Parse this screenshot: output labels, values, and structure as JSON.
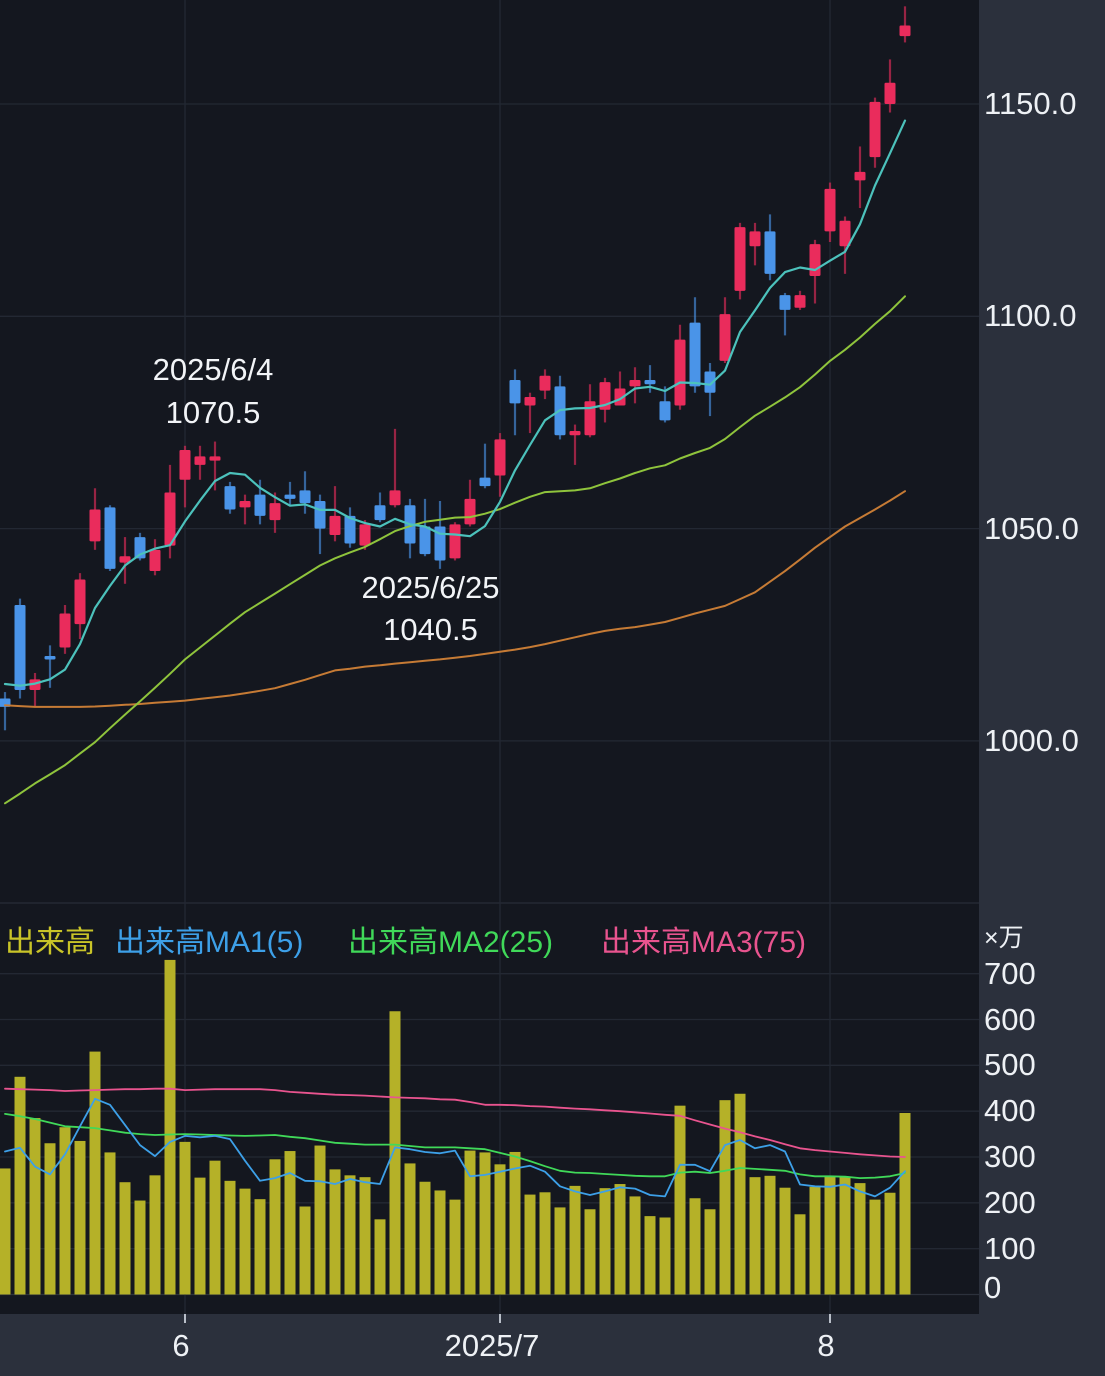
{
  "colors": {
    "background": "#14171f",
    "panel": "#2b303c",
    "grid": "#232833",
    "zero_line": "#2c313c",
    "divider": "#20242e",
    "up": "#ea2c5c",
    "down": "#4a94e8",
    "volume_bar": "#b5b128",
    "price_ma5": "#4cc2bc",
    "price_ma25": "#8fc43c",
    "price_ma75": "#c67b35",
    "volume_ma5": "#3da0e8",
    "volume_ma25": "#40d959",
    "volume_ma75": "#e9548f",
    "axis_text": "#eef1f5",
    "legend_volume_text": "#c9c428",
    "tick_mark": "#b9bfc9"
  },
  "chart_data": {
    "type": "candlestick_with_volume",
    "description": "Daily stock candlestick chart (Japanese style: red = up, blue = down) with 5/25/75-day moving averages and a volume pane with 5/25/75-day volume moving averages.",
    "price_axis": {
      "labels": [
        "1150.0",
        "1100.0",
        "1050.0",
        "1000.0"
      ],
      "values": [
        1150,
        1100,
        1050,
        1000
      ],
      "visible_range": [
        962,
        1174.5
      ]
    },
    "volume_axis": {
      "unit": "×万",
      "labels": [
        "700",
        "600",
        "500",
        "400",
        "300",
        "200",
        "100",
        "0"
      ],
      "values": [
        700,
        600,
        500,
        400,
        300,
        200,
        100,
        0
      ],
      "visible_range": [
        0,
        765
      ]
    },
    "x_axis": {
      "month_ticks": [
        {
          "index": 12,
          "label": "6"
        },
        {
          "index": 33,
          "label": "2025/7"
        },
        {
          "index": 55,
          "label": "8"
        }
      ]
    },
    "annotations": [
      {
        "name": "peak",
        "lines": [
          "2025/6/4",
          "1070.5"
        ],
        "anchor_index": 14,
        "placement": "above"
      },
      {
        "name": "trough",
        "lines": [
          "2025/6/25",
          "1040.5"
        ],
        "anchor_index": 29,
        "placement": "below"
      }
    ],
    "volume_legend": [
      {
        "label": "出来高",
        "color": "#c9c428"
      },
      {
        "label": "出来高MA1(5)",
        "color": "#3da0e8"
      },
      {
        "label": "出来高MA2(25)",
        "color": "#40d959"
      },
      {
        "label": "出来高MA3(75)",
        "color": "#e9548f"
      }
    ],
    "dates": [
      "2025/5/15",
      "2025/5/16",
      "2025/5/19",
      "2025/5/20",
      "2025/5/21",
      "2025/5/22",
      "2025/5/23",
      "2025/5/26",
      "2025/5/27",
      "2025/5/28",
      "2025/5/29",
      "2025/5/30",
      "2025/6/2",
      "2025/6/3",
      "2025/6/4",
      "2025/6/5",
      "2025/6/6",
      "2025/6/9",
      "2025/6/10",
      "2025/6/11",
      "2025/6/12",
      "2025/6/13",
      "2025/6/16",
      "2025/6/17",
      "2025/6/18",
      "2025/6/19",
      "2025/6/20",
      "2025/6/23",
      "2025/6/24",
      "2025/6/25",
      "2025/6/26",
      "2025/6/27",
      "2025/6/30",
      "2025/7/1",
      "2025/7/2",
      "2025/7/3",
      "2025/7/4",
      "2025/7/7",
      "2025/7/8",
      "2025/7/9",
      "2025/7/10",
      "2025/7/11",
      "2025/7/14",
      "2025/7/15",
      "2025/7/16",
      "2025/7/17",
      "2025/7/18",
      "2025/7/22",
      "2025/7/23",
      "2025/7/24",
      "2025/7/25",
      "2025/7/28",
      "2025/7/29",
      "2025/7/30",
      "2025/7/31",
      "2025/8/1",
      "2025/8/4",
      "2025/8/5",
      "2025/8/6",
      "2025/8/7",
      "2025/8/8"
    ],
    "ohlc": [
      [
        1010,
        1011.5,
        1002.5,
        1008
      ],
      [
        1032,
        1033.5,
        1010,
        1012
      ],
      [
        1012,
        1016,
        1008,
        1014.5
      ],
      [
        1020,
        1022.5,
        1012.5,
        1019.5
      ],
      [
        1022,
        1032,
        1020.5,
        1030
      ],
      [
        1027.5,
        1039.5,
        1024,
        1038
      ],
      [
        1047,
        1059.5,
        1045,
        1054.5
      ],
      [
        1055,
        1055.5,
        1040,
        1040.5
      ],
      [
        1042,
        1048,
        1037,
        1043.5
      ],
      [
        1048,
        1049,
        1042.5,
        1043
      ],
      [
        1040,
        1047.5,
        1039,
        1045
      ],
      [
        1046,
        1065,
        1043,
        1058.5
      ],
      [
        1061.5,
        1069.5,
        1055,
        1068.5
      ],
      [
        1065,
        1069.5,
        1061.5,
        1067
      ],
      [
        1066,
        1070.5,
        1059,
        1067
      ],
      [
        1060,
        1061,
        1053.5,
        1054.5
      ],
      [
        1055,
        1058,
        1051,
        1056.5
      ],
      [
        1058,
        1061.5,
        1051,
        1053
      ],
      [
        1052,
        1058.5,
        1049,
        1056
      ],
      [
        1058,
        1061,
        1055.5,
        1057
      ],
      [
        1059,
        1063.5,
        1053.5,
        1056
      ],
      [
        1056.5,
        1058,
        1044,
        1050
      ],
      [
        1048.5,
        1060,
        1047,
        1053
      ],
      [
        1053,
        1055,
        1045.5,
        1046.5
      ],
      [
        1046,
        1052,
        1045,
        1051
      ],
      [
        1055.5,
        1058.5,
        1051.5,
        1052
      ],
      [
        1055.5,
        1073.5,
        1055,
        1059
      ],
      [
        1055.5,
        1057,
        1043,
        1046.5
      ],
      [
        1050.5,
        1057,
        1043.5,
        1044
      ],
      [
        1050.5,
        1056.5,
        1040.5,
        1042.5
      ],
      [
        1043,
        1051.5,
        1042.5,
        1051
      ],
      [
        1051,
        1061.5,
        1050.5,
        1057
      ],
      [
        1062,
        1070,
        1059.5,
        1060
      ],
      [
        1062.5,
        1072.5,
        1057.5,
        1071
      ],
      [
        1085,
        1087.5,
        1072,
        1079.5
      ],
      [
        1079,
        1082,
        1072.5,
        1081
      ],
      [
        1082.5,
        1087.5,
        1080.5,
        1086
      ],
      [
        1083.5,
        1086,
        1071,
        1072
      ],
      [
        1072,
        1074.5,
        1065,
        1073
      ],
      [
        1072,
        1084,
        1071.5,
        1080
      ],
      [
        1078,
        1085.5,
        1075,
        1084.5
      ],
      [
        1079,
        1087,
        1079,
        1083
      ],
      [
        1083.5,
        1088,
        1079.5,
        1085
      ],
      [
        1085,
        1088.5,
        1082,
        1084
      ],
      [
        1080,
        1083.5,
        1075,
        1075.5
      ],
      [
        1079,
        1098,
        1078,
        1094.5
      ],
      [
        1098.5,
        1104.5,
        1082,
        1083.5
      ],
      [
        1087,
        1089,
        1076.5,
        1082
      ],
      [
        1089.5,
        1104.5,
        1089,
        1100.5
      ],
      [
        1106,
        1122,
        1104,
        1121
      ],
      [
        1116.5,
        1122,
        1112,
        1120
      ],
      [
        1120,
        1124,
        1108.5,
        1110
      ],
      [
        1105,
        1105.5,
        1095.5,
        1101.5
      ],
      [
        1102,
        1106,
        1101.5,
        1105
      ],
      [
        1109.5,
        1118,
        1103,
        1117
      ],
      [
        1120,
        1131.5,
        1117.5,
        1130
      ],
      [
        1116.5,
        1123.5,
        1110,
        1122.5
      ],
      [
        1132,
        1140,
        1125.5,
        1134
      ],
      [
        1137.5,
        1151.5,
        1135,
        1150.5
      ],
      [
        1150,
        1160.5,
        1148,
        1155
      ],
      [
        1166,
        1173,
        1164.5,
        1168.5
      ]
    ],
    "volume": [
      275,
      475,
      385,
      330,
      365,
      335,
      530,
      310,
      245,
      205,
      260,
      730,
      333,
      255,
      292,
      248,
      231,
      208,
      295,
      313,
      192,
      325,
      273,
      260,
      256,
      164,
      618,
      286,
      246,
      227,
      207,
      314,
      310,
      284,
      311,
      218,
      223,
      190,
      237,
      186,
      232,
      241,
      214,
      171,
      168,
      412,
      210,
      186,
      424,
      438,
      256,
      259,
      233,
      175,
      235,
      259,
      256,
      243,
      207,
      222,
      396
    ],
    "price_ma": {
      "ma5": [
        1013.4,
        1013,
        1013.5,
        1014.5,
        1016.8,
        1022.8,
        1031.3,
        1036.5,
        1041.3,
        1043.9,
        1045.3,
        1046.1,
        1051.7,
        1056.6,
        1061.2,
        1063.1,
        1062.7,
        1059.6,
        1057.4,
        1055.4,
        1055.7,
        1054.4,
        1054.4,
        1052.5,
        1051.3,
        1050.5,
        1052.3,
        1051,
        1050.5,
        1048.8,
        1048.6,
        1048.2,
        1050.6,
        1056.3,
        1063.7,
        1069.7,
        1075.5,
        1077.9,
        1078.3,
        1078.4,
        1079.1,
        1080.5,
        1083,
        1083.4,
        1082.4,
        1084.4,
        1084.3,
        1083.9,
        1087.2,
        1096.3,
        1101.4,
        1106.7,
        1110.4,
        1111.5,
        1110.9,
        1113.1,
        1115.2,
        1121.7,
        1130.8,
        1138.4,
        1146.1
      ],
      "ma25": [
        985.3,
        987.6,
        990,
        992.1,
        994.3,
        997,
        999.7,
        1003,
        1006.2,
        1009.3,
        1012.5,
        1015.8,
        1019.2,
        1022,
        1024.8,
        1027.6,
        1030.3,
        1032.5,
        1034.7,
        1036.9,
        1039.1,
        1041.3,
        1043,
        1044.4,
        1045.7,
        1047.5,
        1049.4,
        1050.6,
        1051.6,
        1052.1,
        1052.6,
        1052.7,
        1053.5,
        1054.6,
        1056.1,
        1057.5,
        1058.6,
        1058.8,
        1059,
        1059.5,
        1060.7,
        1061.8,
        1063.1,
        1064.2,
        1064.9,
        1066.5,
        1067.8,
        1069,
        1071.1,
        1073.9,
        1076.6,
        1078.7,
        1080.9,
        1083.3,
        1086.3,
        1089.5,
        1092.1,
        1095,
        1098.2,
        1101.2,
        1104.7
      ],
      "ma75": [
        1008.4,
        1008.2,
        1008,
        1008,
        1008,
        1008,
        1008.1,
        1008.3,
        1008.5,
        1008.7,
        1009,
        1009.2,
        1009.5,
        1009.9,
        1010.3,
        1010.7,
        1011.2,
        1011.8,
        1012.4,
        1013.4,
        1014.4,
        1015.5,
        1016.6,
        1017,
        1017.5,
        1017.8,
        1018.2,
        1018.5,
        1018.9,
        1019.2,
        1019.6,
        1020,
        1020.5,
        1021,
        1021.5,
        1022.1,
        1022.8,
        1023.6,
        1024.4,
        1025.2,
        1025.9,
        1026.4,
        1026.8,
        1027.4,
        1028,
        1029,
        1030,
        1030.9,
        1031.8,
        1033.4,
        1035,
        1037.5,
        1040,
        1042.7,
        1045.5,
        1048,
        1050.5,
        1052.5,
        1054.5,
        1056.6,
        1058.8
      ]
    },
    "volume_ma": {
      "ma5": [
        312,
        320,
        279,
        262,
        306,
        367,
        427,
        414,
        370,
        326,
        302,
        333,
        346,
        343,
        346,
        339,
        292,
        248,
        254,
        265,
        248,
        247,
        241,
        252,
        245,
        241,
        321,
        317,
        311,
        308,
        314,
        258,
        261,
        268,
        275,
        281,
        268,
        236,
        225,
        217,
        225,
        234,
        231,
        217,
        214,
        283,
        283,
        269,
        326,
        337,
        319,
        326,
        312,
        240,
        236,
        235,
        240,
        225,
        214,
        233,
        269
      ],
      "ma25": [
        394,
        389,
        383,
        375,
        367,
        365,
        363,
        358,
        353,
        350,
        348,
        349,
        350,
        349,
        348,
        347,
        346,
        347,
        348,
        344,
        341,
        336,
        331,
        329,
        327,
        327,
        327,
        324,
        321,
        321,
        321,
        319,
        317,
        309,
        301,
        291,
        280,
        270,
        266,
        265,
        263,
        261,
        259,
        258,
        258,
        266,
        268,
        265,
        270,
        276,
        274,
        272,
        270,
        262,
        258,
        258,
        257,
        254,
        255,
        258,
        265
      ],
      "ma75": [
        449,
        448,
        447,
        446,
        444,
        445,
        446,
        447,
        448,
        448,
        449,
        449,
        446,
        447,
        448,
        448,
        448,
        448,
        446,
        442,
        440,
        438,
        436,
        435,
        434,
        432,
        430,
        429,
        428,
        426,
        425,
        420,
        414,
        414,
        413,
        411,
        410,
        407.5,
        405.5,
        404,
        402,
        400,
        397.5,
        395,
        392,
        390,
        380,
        371,
        362,
        354,
        345,
        337,
        328,
        319,
        315,
        312,
        309,
        306,
        303.5,
        301,
        300
      ]
    }
  }
}
